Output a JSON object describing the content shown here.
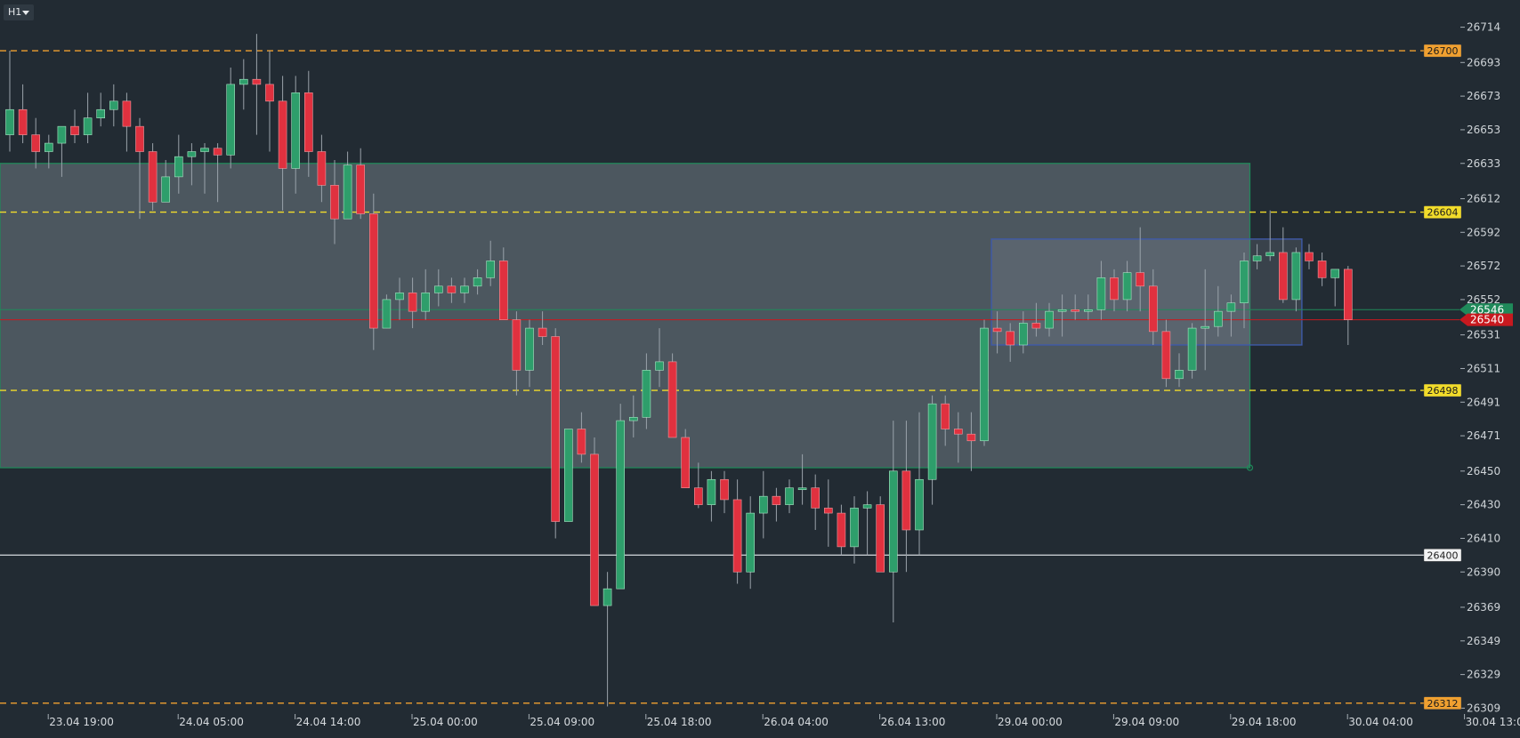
{
  "toolbar": {
    "timeframe": "H1"
  },
  "colors": {
    "background": "#222b33",
    "bull": "#2e9e6b",
    "bear": "#e0313f",
    "wick": "#9aa3ab",
    "zone_fill": "#5d6870",
    "zone_border": "#1e8a5a",
    "box_border": "#3e5aa8",
    "resistance": "#f0a030",
    "level_yellow": "#f2dc2a",
    "bid": "#c8191f",
    "ask": "#1f8a5a",
    "round_level": "#c5cacf"
  },
  "chart_data": {
    "type": "candlestick",
    "price_axis": {
      "ylim": [
        26305,
        26727
      ],
      "ticks": [
        26714,
        26693,
        26673,
        26653,
        26633,
        26612,
        26592,
        26572,
        26552,
        26531,
        26511,
        26491,
        26471,
        26450,
        26430,
        26410,
        26390,
        26369,
        26349,
        26329,
        26309
      ]
    },
    "time_axis": {
      "labels": [
        {
          "label": "23.04 19:00",
          "bar": 2
        },
        {
          "label": "24.04 05:00",
          "bar": 12
        },
        {
          "label": "24.04 14:00",
          "bar": 21
        },
        {
          "label": "25.04 00:00",
          "bar": 30
        },
        {
          "label": "25.04 09:00",
          "bar": 39
        },
        {
          "label": "25.04 18:00",
          "bar": 48
        },
        {
          "label": "26.04 04:00",
          "bar": 57
        },
        {
          "label": "26.04 13:00",
          "bar": 66
        },
        {
          "label": "29.04 00:00",
          "bar": 75
        },
        {
          "label": "29.04 09:00",
          "bar": 84
        },
        {
          "label": "29.04 18:00",
          "bar": 93
        },
        {
          "label": "30.04 04:00",
          "bar": 102
        },
        {
          "label": "30.04 13:00",
          "bar": 111
        }
      ]
    },
    "candles": [
      [
        26650,
        26700,
        26640,
        26665
      ],
      [
        26665,
        26680,
        26645,
        26650
      ],
      [
        26650,
        26660,
        26630,
        26640
      ],
      [
        26640,
        26650,
        26630,
        26645
      ],
      [
        26645,
        26655,
        26625,
        26655
      ],
      [
        26655,
        26665,
        26645,
        26650
      ],
      [
        26650,
        26675,
        26645,
        26660
      ],
      [
        26660,
        26675,
        26655,
        26665
      ],
      [
        26665,
        26680,
        26655,
        26670
      ],
      [
        26670,
        26675,
        26640,
        26655
      ],
      [
        26655,
        26660,
        26600,
        26640
      ],
      [
        26640,
        26645,
        26605,
        26610
      ],
      [
        26610,
        26635,
        26610,
        26625
      ],
      [
        26625,
        26650,
        26615,
        26637
      ],
      [
        26637,
        26645,
        26620,
        26640
      ],
      [
        26640,
        26645,
        26615,
        26642
      ],
      [
        26642,
        26645,
        26610,
        26638
      ],
      [
        26638,
        26690,
        26630,
        26680
      ],
      [
        26680,
        26695,
        26665,
        26683
      ],
      [
        26683,
        26710,
        26650,
        26680
      ],
      [
        26680,
        26700,
        26640,
        26670
      ],
      [
        26670,
        26685,
        26605,
        26630
      ],
      [
        26630,
        26685,
        26615,
        26675
      ],
      [
        26675,
        26688,
        26625,
        26640
      ],
      [
        26640,
        26650,
        26610,
        26620
      ],
      [
        26620,
        26635,
        26585,
        26600
      ],
      [
        26600,
        26640,
        26600,
        26632
      ],
      [
        26632,
        26642,
        26600,
        26603
      ],
      [
        26603,
        26615,
        26522,
        26535
      ],
      [
        26535,
        26555,
        26535,
        26552
      ],
      [
        26552,
        26565,
        26540,
        26556
      ],
      [
        26556,
        26565,
        26535,
        26545
      ],
      [
        26545,
        26570,
        26540,
        26556
      ],
      [
        26556,
        26570,
        26548,
        26560
      ],
      [
        26560,
        26565,
        26550,
        26556
      ],
      [
        26556,
        26565,
        26550,
        26560
      ],
      [
        26560,
        26570,
        26555,
        26565
      ],
      [
        26565,
        26587,
        26560,
        26575
      ],
      [
        26575,
        26583,
        26540,
        26540
      ],
      [
        26540,
        26545,
        26495,
        26510
      ],
      [
        26510,
        26540,
        26500,
        26535
      ],
      [
        26535,
        26545,
        26525,
        26530
      ],
      [
        26530,
        26535,
        26410,
        26420
      ],
      [
        26420,
        26475,
        26420,
        26475
      ],
      [
        26475,
        26485,
        26455,
        26460
      ],
      [
        26460,
        26470,
        26370,
        26370
      ],
      [
        26370,
        26390,
        26310,
        26380
      ],
      [
        26380,
        26490,
        26380,
        26480
      ],
      [
        26480,
        26495,
        26470,
        26482
      ],
      [
        26482,
        26520,
        26475,
        26510
      ],
      [
        26510,
        26535,
        26500,
        26515
      ],
      [
        26515,
        26520,
        26470,
        26470
      ],
      [
        26470,
        26475,
        26440,
        26440
      ],
      [
        26440,
        26455,
        26428,
        26430
      ],
      [
        26430,
        26450,
        26420,
        26445
      ],
      [
        26445,
        26450,
        26425,
        26433
      ],
      [
        26433,
        26445,
        26383,
        26390
      ],
      [
        26390,
        26435,
        26380,
        26425
      ],
      [
        26425,
        26450,
        26410,
        26435
      ],
      [
        26435,
        26440,
        26420,
        26430
      ],
      [
        26430,
        26445,
        26425,
        26440
      ],
      [
        26440,
        26460,
        26430,
        26440
      ],
      [
        26440,
        26448,
        26415,
        26428
      ],
      [
        26428,
        26445,
        26405,
        26425
      ],
      [
        26425,
        26430,
        26400,
        26405
      ],
      [
        26405,
        26435,
        26395,
        26428
      ],
      [
        26428,
        26438,
        26400,
        26430
      ],
      [
        26430,
        26435,
        26390,
        26390
      ],
      [
        26390,
        26480,
        26360,
        26450
      ],
      [
        26450,
        26480,
        26390,
        26415
      ],
      [
        26415,
        26485,
        26400,
        26445
      ],
      [
        26445,
        26495,
        26430,
        26490
      ],
      [
        26490,
        26495,
        26465,
        26475
      ],
      [
        26475,
        26485,
        26455,
        26472
      ],
      [
        26472,
        26485,
        26450,
        26468
      ],
      [
        26468,
        26540,
        26465,
        26535
      ],
      [
        26535,
        26545,
        26520,
        26533
      ],
      [
        26533,
        26538,
        26515,
        26525
      ],
      [
        26525,
        26545,
        26520,
        26538
      ],
      [
        26538,
        26550,
        26530,
        26535
      ],
      [
        26535,
        26550,
        26530,
        26545
      ],
      [
        26545,
        26555,
        26530,
        26546
      ],
      [
        26546,
        26555,
        26540,
        26545
      ],
      [
        26545,
        26555,
        26540,
        26546
      ],
      [
        26546,
        26575,
        26540,
        26565
      ],
      [
        26565,
        26570,
        26545,
        26552
      ],
      [
        26552,
        26575,
        26545,
        26568
      ],
      [
        26568,
        26595,
        26545,
        26560
      ],
      [
        26560,
        26570,
        26525,
        26533
      ],
      [
        26533,
        26540,
        26500,
        26505
      ],
      [
        26505,
        26520,
        26500,
        26510
      ],
      [
        26510,
        26538,
        26505,
        26535
      ],
      [
        26535,
        26570,
        26510,
        26536
      ],
      [
        26536,
        26560,
        26530,
        26545
      ],
      [
        26545,
        26555,
        26530,
        26550
      ],
      [
        26550,
        26580,
        26535,
        26575
      ],
      [
        26575,
        26585,
        26570,
        26578
      ],
      [
        26578,
        26605,
        26575,
        26580
      ],
      [
        26580,
        26595,
        26550,
        26552
      ],
      [
        26552,
        26583,
        26545,
        26580
      ],
      [
        26580,
        26585,
        26570,
        26575
      ],
      [
        26575,
        26580,
        26560,
        26565
      ],
      [
        26565,
        26570,
        26548,
        26570
      ],
      [
        26570,
        26572,
        26525,
        26540
      ]
    ],
    "levels": [
      {
        "name": "resistance-level",
        "price": 26700,
        "label": "26700",
        "style": "dashed",
        "color": "#f0a030",
        "label_bg": "#f0a030",
        "label_fg": "#1c1c1c"
      },
      {
        "name": "upper-level",
        "price": 26604,
        "label": "26604",
        "style": "dashed",
        "color": "#f2dc2a",
        "label_bg": "#f2dc2a",
        "label_fg": "#1c1c1c"
      },
      {
        "name": "lower-level",
        "price": 26498,
        "label": "26498",
        "style": "dashed",
        "color": "#f2dc2a",
        "label_bg": "#f2dc2a",
        "label_fg": "#1c1c1c"
      },
      {
        "name": "round-level",
        "price": 26400,
        "label": "26400",
        "style": "solid",
        "color": "#c5cacf",
        "label_bg": "#f2f3f4",
        "label_fg": "#1c1c1c"
      },
      {
        "name": "support-level",
        "price": 26312,
        "label": "26312",
        "style": "dashed",
        "color": "#f0a030",
        "label_bg": "#f0a030",
        "label_fg": "#1c1c1c"
      }
    ],
    "current_prices": [
      {
        "name": "ask-price",
        "price": 26546,
        "label": "26546",
        "color": "#1f8a5a"
      },
      {
        "name": "bid-price",
        "price": 26540,
        "label": "26540",
        "color": "#c8191f"
      }
    ],
    "zones": [
      {
        "name": "range-zone",
        "bar_start": -1,
        "bar_end": 95,
        "price_top": 26633,
        "price_bottom": 26452
      },
      {
        "name": "consolidation-box",
        "bar_start": 76,
        "bar_end": 99,
        "price_top": 26588,
        "price_bottom": 26525
      }
    ],
    "grid": false,
    "legend": false
  }
}
